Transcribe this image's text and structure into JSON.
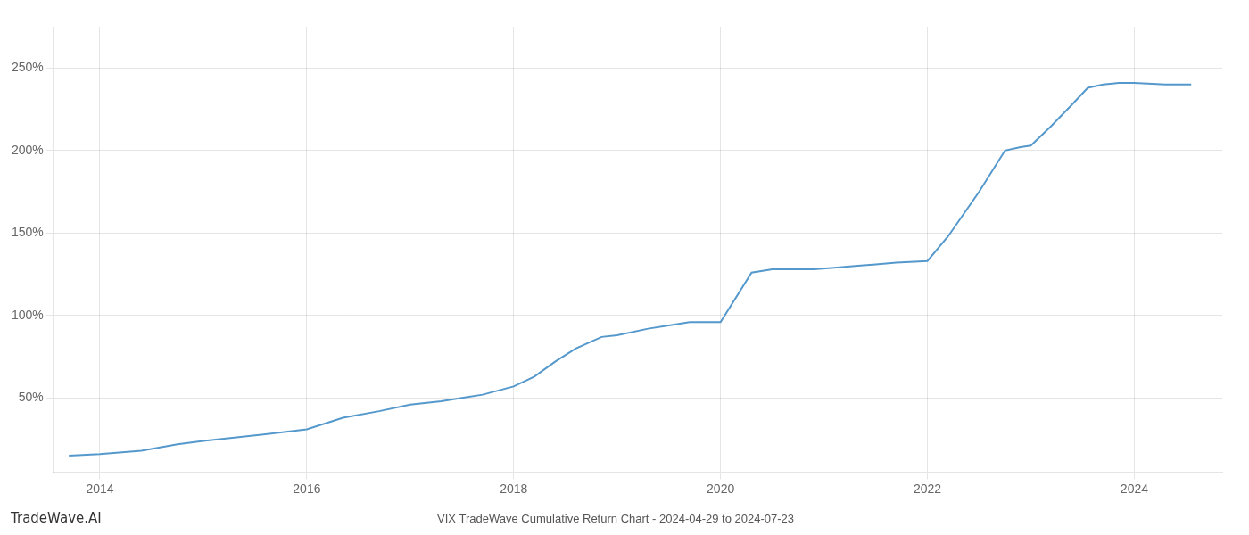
{
  "chart_data": {
    "type": "line",
    "title": "VIX TradeWave Cumulative Return Chart - 2024-04-29 to 2024-07-23",
    "annotations": [
      "TradeWave.AI"
    ],
    "x": [
      2013.7,
      2014.0,
      2014.4,
      2014.75,
      2015.0,
      2015.3,
      2015.6,
      2016.0,
      2016.35,
      2016.7,
      2017.0,
      2017.3,
      2017.5,
      2017.7,
      2018.0,
      2018.2,
      2018.4,
      2018.6,
      2018.85,
      2019.0,
      2019.3,
      2019.5,
      2019.7,
      2020.0,
      2020.3,
      2020.5,
      2020.67,
      2020.9,
      2021.1,
      2021.3,
      2021.5,
      2021.7,
      2022.0,
      2022.2,
      2022.5,
      2022.75,
      2022.9,
      2023.0,
      2023.2,
      2023.4,
      2023.55,
      2023.7,
      2023.85,
      2024.0,
      2024.3,
      2024.55
    ],
    "values": [
      15,
      16,
      18,
      22,
      24,
      26,
      28,
      31,
      38,
      42,
      46,
      48,
      50,
      52,
      57,
      63,
      72,
      80,
      87,
      88,
      92,
      94,
      96,
      96,
      126,
      128,
      128,
      128,
      129,
      130,
      131,
      132,
      133,
      148,
      175,
      200,
      202,
      203,
      215,
      228,
      238,
      240,
      241,
      241,
      240,
      240
    ],
    "color": "#5599cc",
    "xlim": [
      2013.55,
      2024.85
    ],
    "xticks": [
      2014,
      2016,
      2018,
      2020,
      2022,
      2024
    ],
    "ylim": [
      5,
      275
    ],
    "yticks": [
      {
        "value": 50,
        "label": "50%"
      },
      {
        "value": 100,
        "label": "100%"
      },
      {
        "value": 150,
        "label": "150%"
      },
      {
        "value": 200,
        "label": "200%"
      },
      {
        "value": 250,
        "label": "250%"
      }
    ],
    "grid": true
  }
}
